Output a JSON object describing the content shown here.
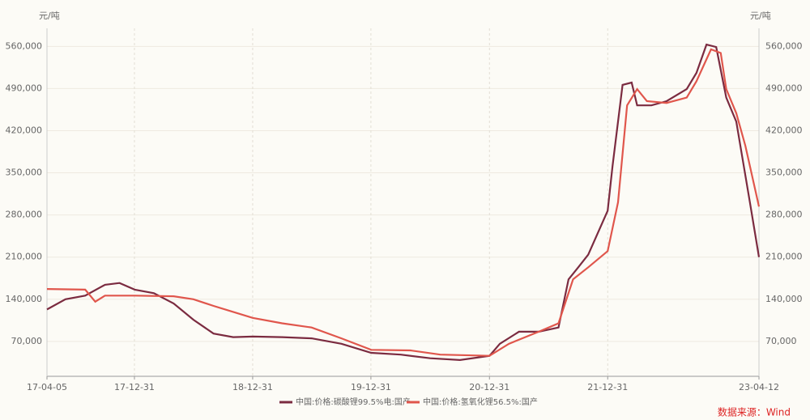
{
  "chart_data": {
    "type": "line",
    "y_label": "元/吨",
    "y2_label": "元/吨",
    "xlim": [
      "17-04-05",
      "23-04-12"
    ],
    "xticks": [
      "17-04-05",
      "17-12-31",
      "18-12-31",
      "19-12-31",
      "20-12-31",
      "21-12-31",
      "23-04-12"
    ],
    "ylim": [
      12000,
      590000
    ],
    "yticks": [
      {
        "value": 70000,
        "label": "70,000"
      },
      {
        "value": 140000,
        "label": "140,000"
      },
      {
        "value": 210000,
        "label": "210,000"
      },
      {
        "value": 280000,
        "label": "280,000"
      },
      {
        "value": 350000,
        "label": "350,000"
      },
      {
        "value": 420000,
        "label": "420,000"
      },
      {
        "value": 490000,
        "label": "490,000"
      },
      {
        "value": 560000,
        "label": "560,000"
      }
    ],
    "y2lim": [
      12000,
      590000
    ],
    "y2ticks": [
      {
        "value": 70000,
        "label": "70,000"
      },
      {
        "value": 140000,
        "label": "140,000"
      },
      {
        "value": 210000,
        "label": "210,000"
      },
      {
        "value": 280000,
        "label": "280,000"
      },
      {
        "value": 350000,
        "label": "350,000"
      },
      {
        "value": 420000,
        "label": "420,000"
      },
      {
        "value": 490000,
        "label": "490,000"
      },
      {
        "value": 560000,
        "label": "560,000"
      }
    ],
    "grid": true,
    "series": [
      {
        "name": "中国:价格:碳酸锂99.5%电:国产",
        "color": "#7b2b40",
        "x": [
          "17-04-05",
          "17-06-01",
          "17-08-01",
          "17-10-01",
          "17-11-15",
          "18-01-01",
          "18-03-01",
          "18-05-01",
          "18-07-01",
          "18-09-01",
          "18-11-01",
          "19-01-01",
          "19-04-01",
          "19-07-01",
          "19-10-01",
          "20-01-01",
          "20-04-01",
          "20-07-01",
          "20-10-01",
          "20-12-31",
          "21-02-01",
          "21-04-01",
          "21-06-01",
          "21-08-01",
          "21-09-01",
          "21-10-01",
          "21-11-01",
          "21-12-31",
          "22-01-15",
          "22-02-15",
          "22-03-15",
          "22-04-01",
          "22-05-15",
          "22-07-01",
          "22-09-01",
          "22-10-01",
          "22-11-01",
          "22-12-01",
          "23-01-01",
          "23-02-01",
          "23-03-15",
          "23-04-12"
        ],
        "values": [
          123000,
          140000,
          146000,
          164000,
          167000,
          156000,
          150000,
          133000,
          106000,
          83000,
          77000,
          78000,
          77000,
          75000,
          66000,
          51000,
          48000,
          42000,
          39000,
          46000,
          66000,
          86000,
          86000,
          93000,
          173000,
          193000,
          214000,
          287000,
          361000,
          496000,
          500000,
          462000,
          462000,
          469000,
          489000,
          516000,
          563000,
          559000,
          475000,
          435000,
          301000,
          210000
        ]
      },
      {
        "name": "中国:价格:氢氧化锂56.5%:国产",
        "color": "#e0564c",
        "x": [
          "17-04-05",
          "17-08-01",
          "17-09-01",
          "17-10-01",
          "18-01-01",
          "18-05-01",
          "18-07-01",
          "18-09-01",
          "18-12-31",
          "19-04-01",
          "19-07-01",
          "19-10-01",
          "20-01-01",
          "20-05-01",
          "20-08-01",
          "20-12-31",
          "21-03-01",
          "21-06-01",
          "21-08-01",
          "21-09-15",
          "21-11-01",
          "21-12-31",
          "22-02-01",
          "22-03-01",
          "22-04-01",
          "22-05-01",
          "22-07-01",
          "22-09-01",
          "22-10-01",
          "22-11-15",
          "22-12-15",
          "23-01-01",
          "23-02-01",
          "23-03-01",
          "23-04-12"
        ],
        "values": [
          157000,
          156000,
          136000,
          146000,
          146000,
          145000,
          140000,
          129000,
          109000,
          100000,
          93000,
          75000,
          56000,
          55000,
          48000,
          46000,
          66000,
          86000,
          100000,
          173000,
          193000,
          220000,
          301000,
          462000,
          489000,
          469000,
          466000,
          475000,
          502000,
          555000,
          549000,
          489000,
          449000,
          395000,
          294000
        ]
      }
    ],
    "source": "数据来源：Wind"
  }
}
